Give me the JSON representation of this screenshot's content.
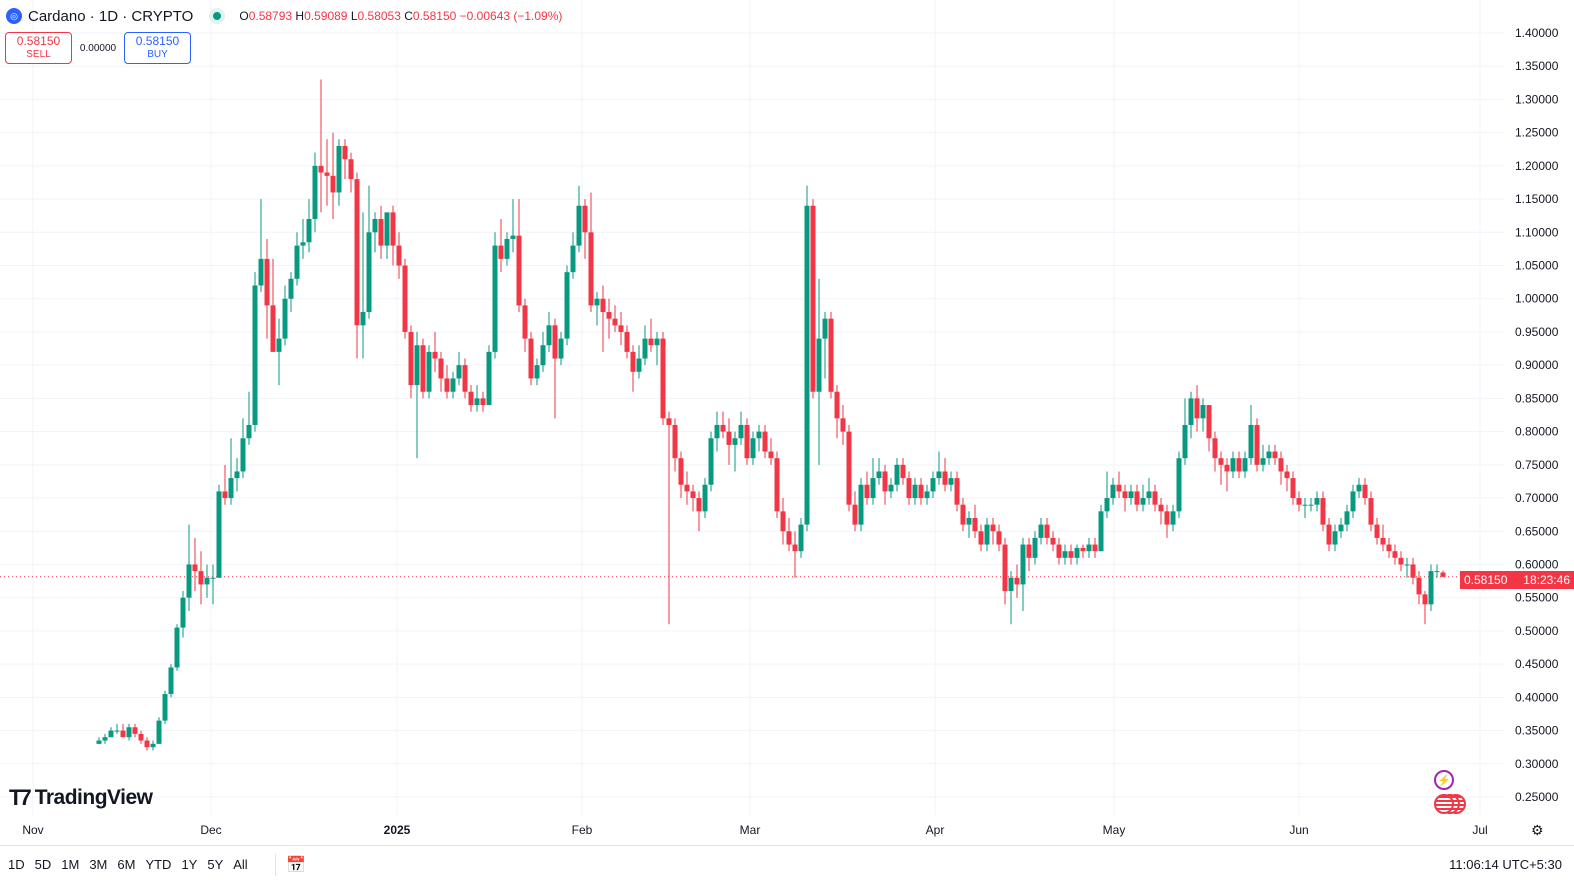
{
  "header": {
    "symbol_title": "Cardano · 1D · CRYPTO",
    "ohlc": {
      "o_label": "O",
      "o": "0.58793",
      "h_label": "H",
      "h": "0.59089",
      "l_label": "L",
      "l": "0.58053",
      "c_label": "C",
      "c": "0.58150",
      "change": "−0.00643 (−1.09%)"
    }
  },
  "trade": {
    "sell_price": "0.58150",
    "sell_label": "SELL",
    "spread": "0.00000",
    "buy_price": "0.58150",
    "buy_label": "BUY"
  },
  "logo_text": "TradingView",
  "last_price": {
    "value": "0.58150",
    "countdown": "18:23:46"
  },
  "time_axis": [
    "Nov",
    "Dec",
    "2025",
    "Feb",
    "Mar",
    "Apr",
    "May",
    "Jun",
    "Jul"
  ],
  "range_buttons": [
    "1D",
    "5D",
    "1M",
    "3M",
    "6M",
    "YTD",
    "1Y",
    "5Y",
    "All"
  ],
  "clock": "11:06:14 UTC+5:30",
  "colors": {
    "up": "#089981",
    "down": "#f23645",
    "grid": "#f0f3fa",
    "accent": "#2962ff"
  },
  "icons": {
    "symbol": "cardano-logo-icon",
    "status": "market-open-dot-icon",
    "calendar": "calendar-goto-icon",
    "settings": "gear-icon",
    "events": [
      "lightning-event-icon",
      "us-flag-economic-event-icon"
    ]
  },
  "chart_data": {
    "type": "candlestick",
    "title": "Cardano · 1D · CRYPTO",
    "interval": "1D",
    "ylim": [
      0.23,
      1.42
    ],
    "price_ticks": [
      "0.25000",
      "0.30000",
      "0.35000",
      "0.40000",
      "0.45000",
      "0.50000",
      "0.55000",
      "0.60000",
      "0.65000",
      "0.70000",
      "0.75000",
      "0.80000",
      "0.85000",
      "0.90000",
      "0.95000",
      "1.00000",
      "1.05000",
      "1.10000",
      "1.15000",
      "1.20000",
      "1.25000",
      "1.30000",
      "1.35000",
      "1.40000"
    ],
    "x_ticks": [
      "Nov",
      "Dec",
      "2025",
      "Feb",
      "Mar",
      "Apr",
      "May",
      "Jun",
      "Jul"
    ],
    "current_price": 0.5815,
    "grid": true,
    "candles_ohlc": [
      [
        0.33,
        0.34,
        0.33,
        0.335
      ],
      [
        0.335,
        0.345,
        0.33,
        0.34
      ],
      [
        0.34,
        0.355,
        0.34,
        0.35
      ],
      [
        0.35,
        0.36,
        0.345,
        0.35
      ],
      [
        0.35,
        0.36,
        0.34,
        0.34
      ],
      [
        0.34,
        0.36,
        0.335,
        0.355
      ],
      [
        0.355,
        0.36,
        0.34,
        0.345
      ],
      [
        0.345,
        0.35,
        0.33,
        0.335
      ],
      [
        0.335,
        0.34,
        0.32,
        0.325
      ],
      [
        0.325,
        0.335,
        0.32,
        0.33
      ],
      [
        0.33,
        0.37,
        0.33,
        0.365
      ],
      [
        0.365,
        0.41,
        0.36,
        0.405
      ],
      [
        0.405,
        0.45,
        0.4,
        0.445
      ],
      [
        0.445,
        0.51,
        0.44,
        0.505
      ],
      [
        0.505,
        0.56,
        0.49,
        0.55
      ],
      [
        0.55,
        0.66,
        0.53,
        0.6
      ],
      [
        0.6,
        0.64,
        0.56,
        0.59
      ],
      [
        0.59,
        0.62,
        0.54,
        0.57
      ],
      [
        0.57,
        0.6,
        0.55,
        0.58
      ],
      [
        0.58,
        0.6,
        0.54,
        0.58
      ],
      [
        0.58,
        0.72,
        0.58,
        0.71
      ],
      [
        0.71,
        0.75,
        0.69,
        0.7
      ],
      [
        0.7,
        0.79,
        0.69,
        0.73
      ],
      [
        0.73,
        0.76,
        0.71,
        0.74
      ],
      [
        0.74,
        0.82,
        0.73,
        0.79
      ],
      [
        0.79,
        0.86,
        0.78,
        0.81
      ],
      [
        0.81,
        1.04,
        0.8,
        1.02
      ],
      [
        1.02,
        1.15,
        1.01,
        1.06
      ],
      [
        1.06,
        1.09,
        0.94,
        0.99
      ],
      [
        0.99,
        1.06,
        0.93,
        0.92
      ],
      [
        0.92,
        0.97,
        0.87,
        0.94
      ],
      [
        0.94,
        1.02,
        0.93,
        1.0
      ],
      [
        1.0,
        1.04,
        0.98,
        1.03
      ],
      [
        1.03,
        1.1,
        1.02,
        1.08
      ],
      [
        1.08,
        1.12,
        1.06,
        1.085
      ],
      [
        1.085,
        1.15,
        1.07,
        1.12
      ],
      [
        1.12,
        1.22,
        1.1,
        1.2
      ],
      [
        1.2,
        1.33,
        1.13,
        1.19
      ],
      [
        1.19,
        1.24,
        1.14,
        1.185
      ],
      [
        1.185,
        1.25,
        1.12,
        1.16
      ],
      [
        1.16,
        1.24,
        1.14,
        1.23
      ],
      [
        1.23,
        1.24,
        1.18,
        1.21
      ],
      [
        1.21,
        1.22,
        1.16,
        1.18
      ],
      [
        1.18,
        1.19,
        0.91,
        0.96
      ],
      [
        0.96,
        1.13,
        0.91,
        0.98
      ],
      [
        0.98,
        1.17,
        0.97,
        1.1
      ],
      [
        1.1,
        1.13,
        1.07,
        1.12
      ],
      [
        1.12,
        1.14,
        1.06,
        1.08
      ],
      [
        1.08,
        1.13,
        1.06,
        1.13
      ],
      [
        1.13,
        1.14,
        1.05,
        1.08
      ],
      [
        1.08,
        1.1,
        1.03,
        1.05
      ],
      [
        1.05,
        1.06,
        0.94,
        0.95
      ],
      [
        0.95,
        0.96,
        0.85,
        0.87
      ],
      [
        0.87,
        0.95,
        0.76,
        0.93
      ],
      [
        0.93,
        0.94,
        0.85,
        0.86
      ],
      [
        0.86,
        0.93,
        0.85,
        0.92
      ],
      [
        0.92,
        0.95,
        0.89,
        0.91
      ],
      [
        0.91,
        0.92,
        0.86,
        0.88
      ],
      [
        0.88,
        0.9,
        0.85,
        0.86
      ],
      [
        0.86,
        0.89,
        0.85,
        0.88
      ],
      [
        0.88,
        0.92,
        0.87,
        0.9
      ],
      [
        0.9,
        0.91,
        0.85,
        0.86
      ],
      [
        0.86,
        0.87,
        0.83,
        0.84
      ],
      [
        0.84,
        0.87,
        0.83,
        0.85
      ],
      [
        0.85,
        0.86,
        0.83,
        0.84
      ],
      [
        0.84,
        0.93,
        0.84,
        0.92
      ],
      [
        0.92,
        1.1,
        0.91,
        1.08
      ],
      [
        1.08,
        1.12,
        1.04,
        1.06
      ],
      [
        1.06,
        1.1,
        1.05,
        1.09
      ],
      [
        1.09,
        1.15,
        1.07,
        1.095
      ],
      [
        1.095,
        1.15,
        0.98,
        0.99
      ],
      [
        0.99,
        1.0,
        0.92,
        0.94
      ],
      [
        0.94,
        0.95,
        0.87,
        0.88
      ],
      [
        0.88,
        0.91,
        0.87,
        0.9
      ],
      [
        0.9,
        0.95,
        0.89,
        0.93
      ],
      [
        0.93,
        0.98,
        0.92,
        0.96
      ],
      [
        0.96,
        0.97,
        0.82,
        0.91
      ],
      [
        0.91,
        0.95,
        0.9,
        0.94
      ],
      [
        0.94,
        1.05,
        0.93,
        1.04
      ],
      [
        1.04,
        1.1,
        1.03,
        1.08
      ],
      [
        1.08,
        1.17,
        1.07,
        1.14
      ],
      [
        1.14,
        1.15,
        1.06,
        1.1
      ],
      [
        1.1,
        1.16,
        0.98,
        0.99
      ],
      [
        0.99,
        1.01,
        0.96,
        1.0
      ],
      [
        1.0,
        1.02,
        0.92,
        0.98
      ],
      [
        0.98,
        1.0,
        0.94,
        0.97
      ],
      [
        0.97,
        0.99,
        0.95,
        0.96
      ],
      [
        0.96,
        0.98,
        0.93,
        0.95
      ],
      [
        0.95,
        0.96,
        0.91,
        0.92
      ],
      [
        0.92,
        0.93,
        0.86,
        0.89
      ],
      [
        0.89,
        0.93,
        0.88,
        0.91
      ],
      [
        0.91,
        0.96,
        0.9,
        0.94
      ],
      [
        0.94,
        0.97,
        0.92,
        0.93
      ],
      [
        0.93,
        0.95,
        0.9,
        0.94
      ],
      [
        0.94,
        0.95,
        0.81,
        0.82
      ],
      [
        0.82,
        0.83,
        0.51,
        0.81
      ],
      [
        0.81,
        0.82,
        0.74,
        0.76
      ],
      [
        0.76,
        0.77,
        0.7,
        0.72
      ],
      [
        0.72,
        0.74,
        0.69,
        0.71
      ],
      [
        0.71,
        0.72,
        0.68,
        0.7
      ],
      [
        0.7,
        0.71,
        0.65,
        0.68
      ],
      [
        0.68,
        0.73,
        0.67,
        0.72
      ],
      [
        0.72,
        0.8,
        0.71,
        0.79
      ],
      [
        0.79,
        0.83,
        0.77,
        0.81
      ],
      [
        0.81,
        0.83,
        0.79,
        0.8
      ],
      [
        0.8,
        0.82,
        0.75,
        0.78
      ],
      [
        0.78,
        0.8,
        0.74,
        0.79
      ],
      [
        0.79,
        0.83,
        0.78,
        0.81
      ],
      [
        0.81,
        0.82,
        0.75,
        0.76
      ],
      [
        0.76,
        0.8,
        0.75,
        0.79
      ],
      [
        0.79,
        0.81,
        0.77,
        0.8
      ],
      [
        0.8,
        0.81,
        0.76,
        0.77
      ],
      [
        0.77,
        0.79,
        0.75,
        0.76
      ],
      [
        0.76,
        0.77,
        0.67,
        0.68
      ],
      [
        0.68,
        0.7,
        0.63,
        0.65
      ],
      [
        0.65,
        0.67,
        0.62,
        0.63
      ],
      [
        0.63,
        0.65,
        0.58,
        0.62
      ],
      [
        0.62,
        0.67,
        0.61,
        0.66
      ],
      [
        0.66,
        1.17,
        0.65,
        1.14
      ],
      [
        1.14,
        1.15,
        0.85,
        0.86
      ],
      [
        0.86,
        1.03,
        0.75,
        0.94
      ],
      [
        0.94,
        0.98,
        0.88,
        0.97
      ],
      [
        0.97,
        0.98,
        0.85,
        0.86
      ],
      [
        0.86,
        0.87,
        0.79,
        0.82
      ],
      [
        0.82,
        0.84,
        0.78,
        0.8
      ],
      [
        0.8,
        0.81,
        0.68,
        0.69
      ],
      [
        0.69,
        0.71,
        0.65,
        0.66
      ],
      [
        0.66,
        0.73,
        0.65,
        0.72
      ],
      [
        0.72,
        0.74,
        0.69,
        0.7
      ],
      [
        0.7,
        0.76,
        0.69,
        0.73
      ],
      [
        0.73,
        0.76,
        0.72,
        0.74
      ],
      [
        0.74,
        0.75,
        0.69,
        0.71
      ],
      [
        0.71,
        0.73,
        0.7,
        0.72
      ],
      [
        0.72,
        0.76,
        0.71,
        0.75
      ],
      [
        0.75,
        0.76,
        0.72,
        0.73
      ],
      [
        0.73,
        0.74,
        0.69,
        0.7
      ],
      [
        0.7,
        0.73,
        0.69,
        0.72
      ],
      [
        0.72,
        0.73,
        0.69,
        0.7
      ],
      [
        0.7,
        0.72,
        0.69,
        0.71
      ],
      [
        0.71,
        0.74,
        0.7,
        0.73
      ],
      [
        0.73,
        0.77,
        0.72,
        0.74
      ],
      [
        0.74,
        0.76,
        0.71,
        0.72
      ],
      [
        0.72,
        0.74,
        0.71,
        0.73
      ],
      [
        0.73,
        0.74,
        0.68,
        0.69
      ],
      [
        0.69,
        0.7,
        0.65,
        0.66
      ],
      [
        0.66,
        0.68,
        0.64,
        0.67
      ],
      [
        0.67,
        0.69,
        0.64,
        0.65
      ],
      [
        0.65,
        0.66,
        0.62,
        0.63
      ],
      [
        0.63,
        0.67,
        0.62,
        0.66
      ],
      [
        0.66,
        0.67,
        0.63,
        0.65
      ],
      [
        0.65,
        0.66,
        0.62,
        0.63
      ],
      [
        0.63,
        0.64,
        0.54,
        0.56
      ],
      [
        0.56,
        0.59,
        0.51,
        0.58
      ],
      [
        0.58,
        0.6,
        0.55,
        0.57
      ],
      [
        0.57,
        0.64,
        0.53,
        0.63
      ],
      [
        0.63,
        0.64,
        0.59,
        0.61
      ],
      [
        0.61,
        0.65,
        0.6,
        0.64
      ],
      [
        0.64,
        0.67,
        0.63,
        0.66
      ],
      [
        0.66,
        0.67,
        0.63,
        0.64
      ],
      [
        0.64,
        0.65,
        0.62,
        0.63
      ],
      [
        0.63,
        0.64,
        0.6,
        0.61
      ],
      [
        0.61,
        0.63,
        0.6,
        0.62
      ],
      [
        0.62,
        0.63,
        0.6,
        0.61
      ],
      [
        0.61,
        0.63,
        0.6,
        0.625
      ],
      [
        0.625,
        0.63,
        0.61,
        0.62
      ],
      [
        0.62,
        0.64,
        0.61,
        0.63
      ],
      [
        0.63,
        0.64,
        0.61,
        0.62
      ],
      [
        0.62,
        0.69,
        0.62,
        0.68
      ],
      [
        0.68,
        0.74,
        0.67,
        0.7
      ],
      [
        0.7,
        0.73,
        0.69,
        0.72
      ],
      [
        0.72,
        0.74,
        0.7,
        0.71
      ],
      [
        0.71,
        0.72,
        0.68,
        0.7
      ],
      [
        0.7,
        0.72,
        0.69,
        0.71
      ],
      [
        0.71,
        0.72,
        0.68,
        0.69
      ],
      [
        0.69,
        0.72,
        0.68,
        0.7
      ],
      [
        0.7,
        0.73,
        0.69,
        0.71
      ],
      [
        0.71,
        0.72,
        0.68,
        0.69
      ],
      [
        0.69,
        0.7,
        0.66,
        0.68
      ],
      [
        0.68,
        0.69,
        0.64,
        0.66
      ],
      [
        0.66,
        0.69,
        0.65,
        0.68
      ],
      [
        0.68,
        0.77,
        0.67,
        0.76
      ],
      [
        0.76,
        0.85,
        0.75,
        0.81
      ],
      [
        0.81,
        0.86,
        0.79,
        0.85
      ],
      [
        0.85,
        0.87,
        0.8,
        0.82
      ],
      [
        0.82,
        0.85,
        0.8,
        0.84
      ],
      [
        0.84,
        0.84,
        0.77,
        0.79
      ],
      [
        0.79,
        0.8,
        0.74,
        0.76
      ],
      [
        0.76,
        0.77,
        0.72,
        0.75
      ],
      [
        0.75,
        0.76,
        0.71,
        0.74
      ],
      [
        0.74,
        0.77,
        0.73,
        0.76
      ],
      [
        0.76,
        0.77,
        0.73,
        0.74
      ],
      [
        0.74,
        0.77,
        0.73,
        0.76
      ],
      [
        0.76,
        0.84,
        0.75,
        0.81
      ],
      [
        0.81,
        0.82,
        0.74,
        0.75
      ],
      [
        0.75,
        0.78,
        0.74,
        0.76
      ],
      [
        0.76,
        0.78,
        0.75,
        0.77
      ],
      [
        0.77,
        0.78,
        0.75,
        0.76
      ],
      [
        0.76,
        0.77,
        0.72,
        0.74
      ],
      [
        0.74,
        0.75,
        0.71,
        0.73
      ],
      [
        0.73,
        0.74,
        0.69,
        0.7
      ],
      [
        0.7,
        0.71,
        0.68,
        0.69
      ],
      [
        0.69,
        0.7,
        0.67,
        0.69
      ],
      [
        0.69,
        0.7,
        0.68,
        0.69
      ],
      [
        0.69,
        0.71,
        0.68,
        0.7
      ],
      [
        0.7,
        0.71,
        0.65,
        0.66
      ],
      [
        0.66,
        0.67,
        0.62,
        0.63
      ],
      [
        0.63,
        0.66,
        0.62,
        0.65
      ],
      [
        0.65,
        0.67,
        0.64,
        0.66
      ],
      [
        0.66,
        0.69,
        0.65,
        0.68
      ],
      [
        0.68,
        0.72,
        0.67,
        0.71
      ],
      [
        0.71,
        0.73,
        0.7,
        0.72
      ],
      [
        0.72,
        0.73,
        0.69,
        0.7
      ],
      [
        0.7,
        0.71,
        0.65,
        0.66
      ],
      [
        0.66,
        0.67,
        0.63,
        0.64
      ],
      [
        0.64,
        0.66,
        0.62,
        0.63
      ],
      [
        0.63,
        0.64,
        0.61,
        0.62
      ],
      [
        0.62,
        0.63,
        0.6,
        0.61
      ],
      [
        0.61,
        0.62,
        0.59,
        0.6
      ],
      [
        0.6,
        0.61,
        0.58,
        0.6
      ],
      [
        0.6,
        0.61,
        0.57,
        0.58
      ],
      [
        0.58,
        0.59,
        0.54,
        0.555
      ],
      [
        0.555,
        0.56,
        0.51,
        0.54
      ],
      [
        0.54,
        0.6,
        0.53,
        0.59
      ],
      [
        0.59,
        0.6,
        0.58,
        0.59
      ],
      [
        0.58793,
        0.59089,
        0.58053,
        0.5815
      ]
    ]
  }
}
